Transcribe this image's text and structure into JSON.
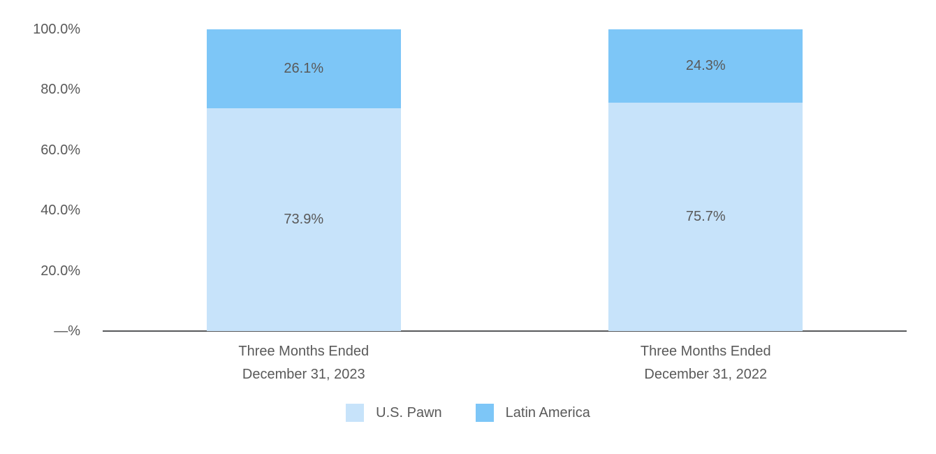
{
  "chart_data": {
    "type": "bar",
    "stacked": true,
    "title": "",
    "xlabel": "",
    "ylabel": "",
    "categories": [
      [
        "Three Months Ended",
        "December 31, 2023"
      ],
      [
        "Three Months Ended",
        "December 31, 2022"
      ]
    ],
    "series": [
      {
        "name": "U.S. Pawn",
        "color": "#C7E3FA",
        "values": [
          73.9,
          75.7
        ],
        "labels": [
          "73.9%",
          "75.7%"
        ]
      },
      {
        "name": "Latin America",
        "color": "#7DC6F7",
        "values": [
          26.1,
          24.3
        ],
        "labels": [
          "26.1%",
          "24.3%"
        ]
      }
    ],
    "y_axis": {
      "range": [
        0,
        100
      ],
      "ticks": [
        {
          "label": "100.0%",
          "value": 100
        },
        {
          "label": "80.0%",
          "value": 80
        },
        {
          "label": "60.0%",
          "value": 60
        },
        {
          "label": "40.0%",
          "value": 40
        },
        {
          "label": "20.0%",
          "value": 20
        },
        {
          "label": "—%",
          "value": 0
        }
      ]
    },
    "legend": {
      "position": "bottom",
      "entries": [
        "U.S. Pawn",
        "Latin America"
      ]
    },
    "grid": false,
    "colors": {
      "text": "#595959",
      "axis_line": "#58595B",
      "background": "#ffffff"
    }
  }
}
